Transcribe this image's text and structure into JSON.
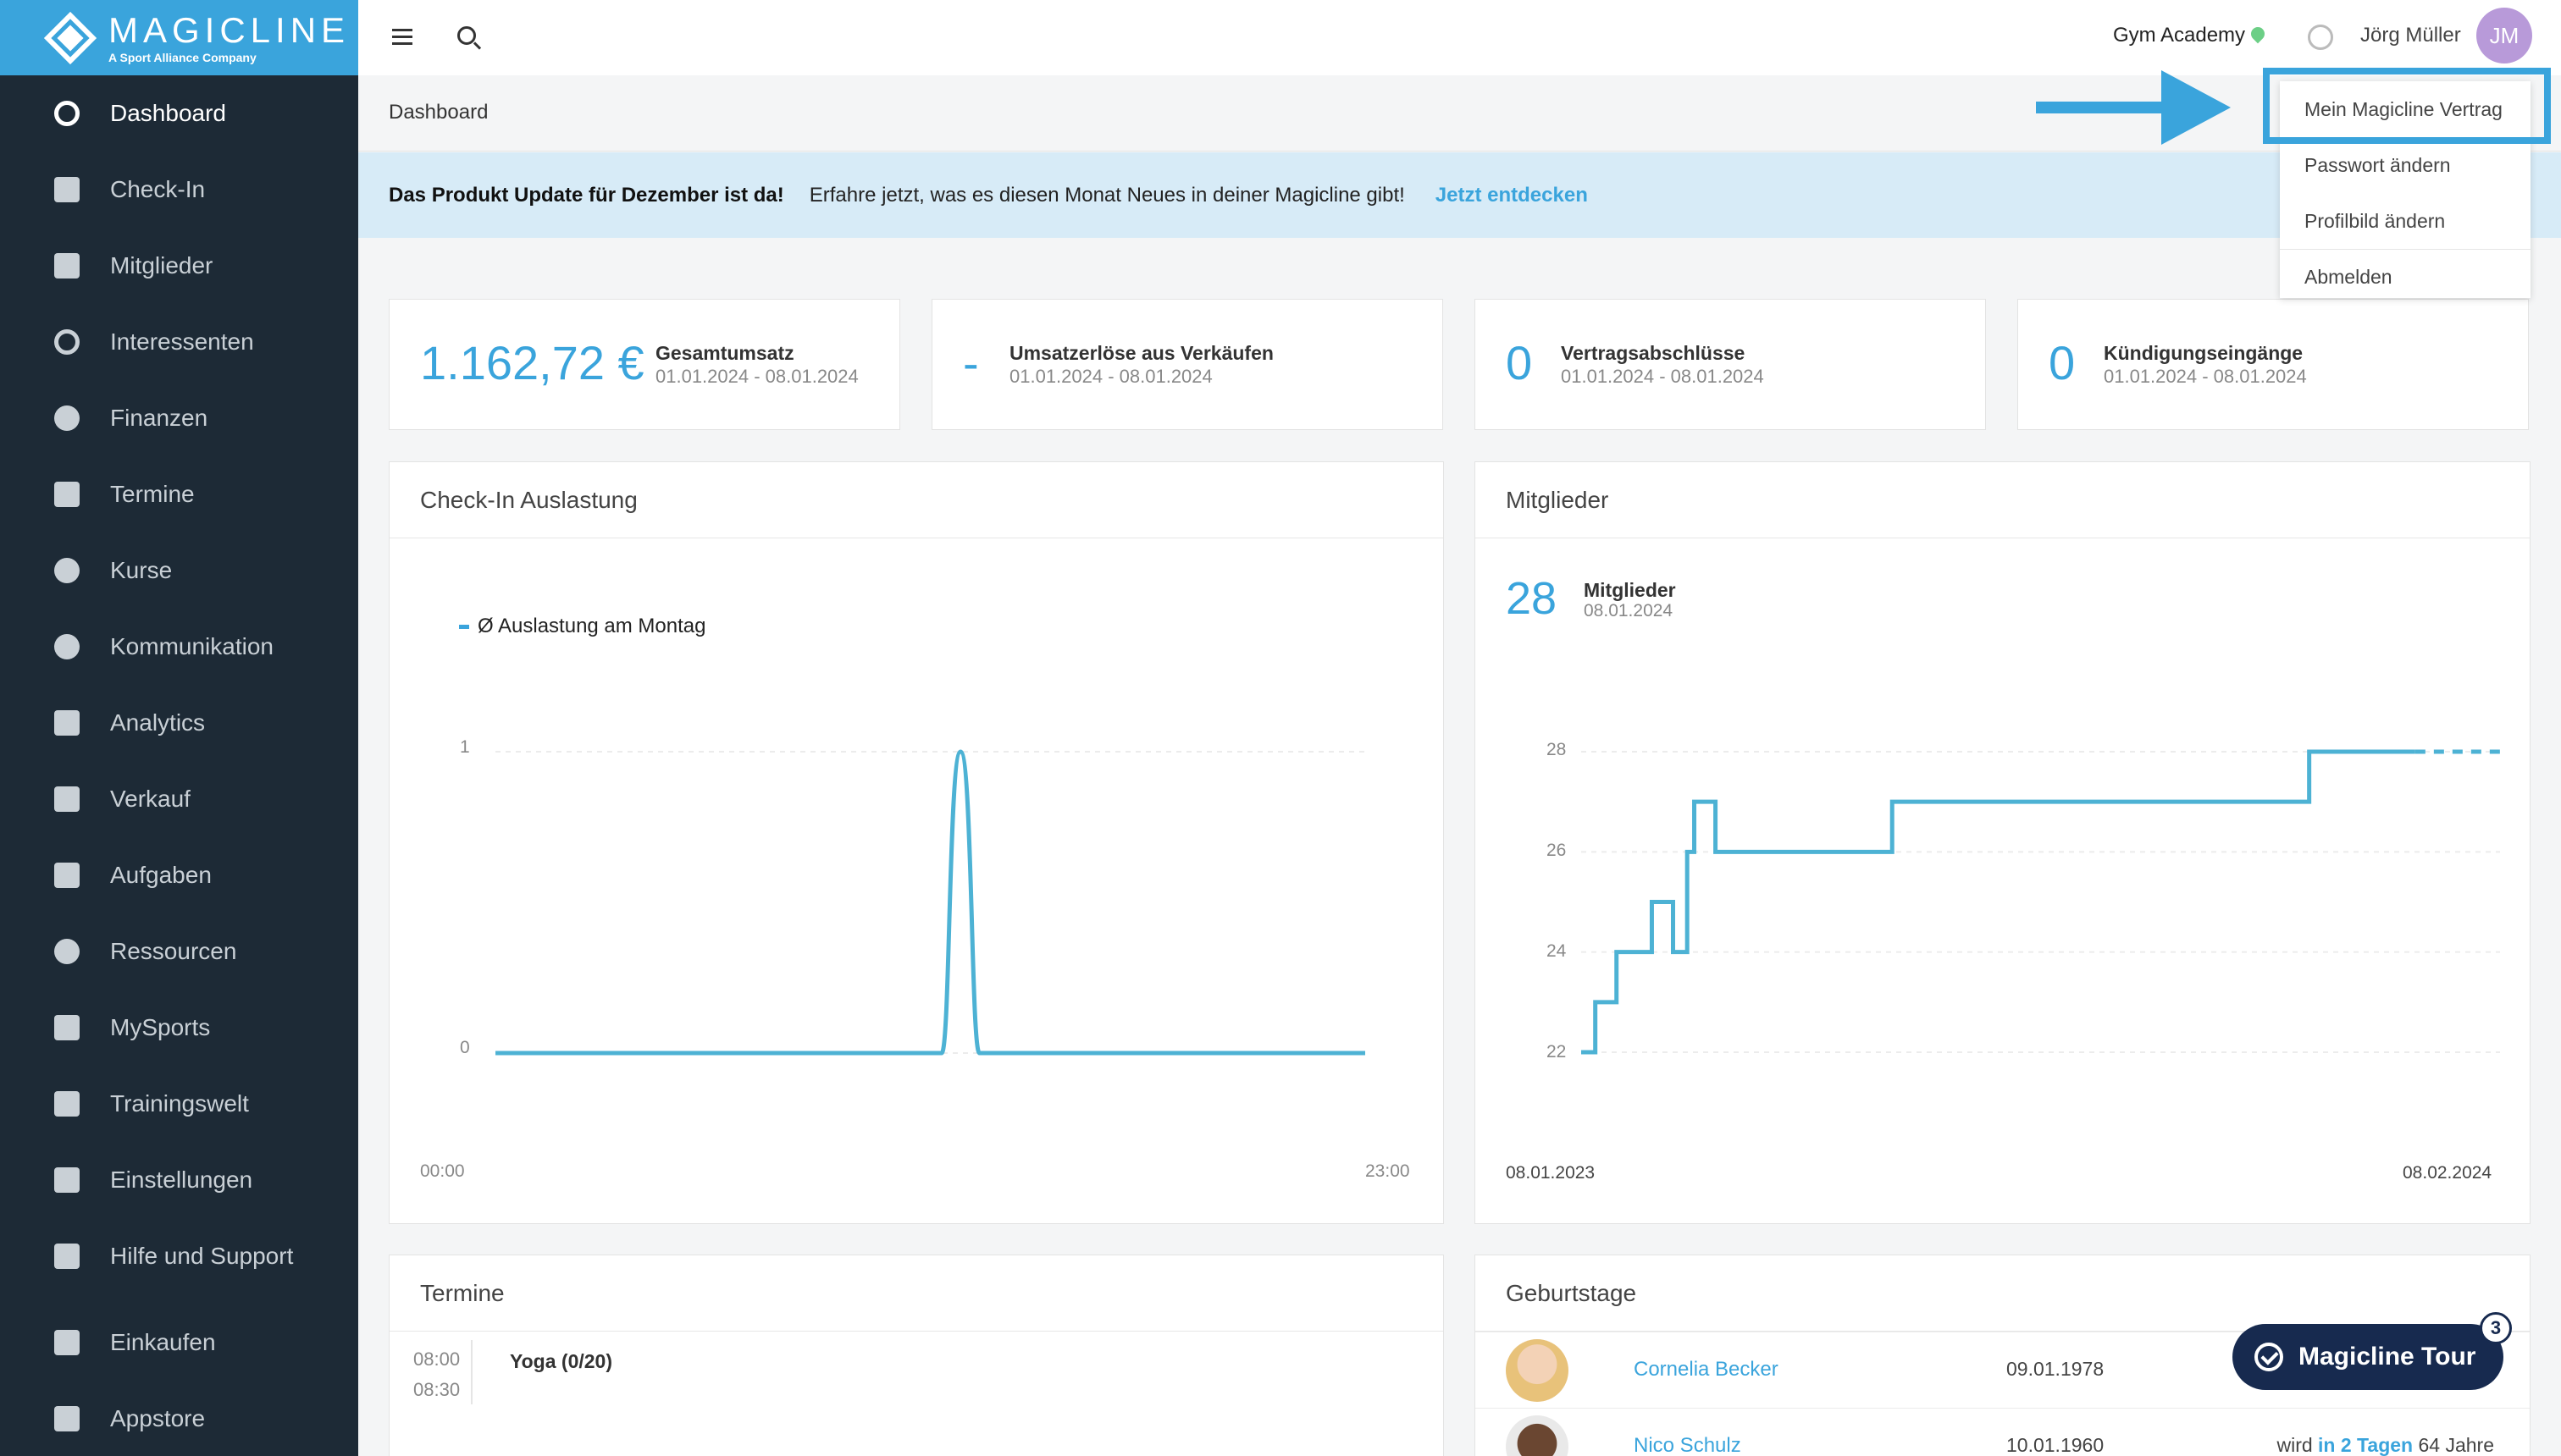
{
  "sidebar": {
    "logo": {
      "brand": "MAGICLINE",
      "tagline": "A Sport Alliance Company"
    },
    "items": [
      {
        "label": "Dashboard",
        "icon": "gauge-icon"
      },
      {
        "label": "Check-In",
        "icon": "check-in-icon"
      },
      {
        "label": "Mitglieder",
        "icon": "member-card-icon"
      },
      {
        "label": "Interessenten",
        "icon": "target-icon"
      },
      {
        "label": "Finanzen",
        "icon": "euro-icon"
      },
      {
        "label": "Termine",
        "icon": "calendar-icon"
      },
      {
        "label": "Kurse",
        "icon": "stopwatch-icon"
      },
      {
        "label": "Kommunikation",
        "icon": "chat-icon"
      },
      {
        "label": "Analytics",
        "icon": "chart-icon"
      },
      {
        "label": "Verkauf",
        "icon": "cart-icon"
      },
      {
        "label": "Aufgaben",
        "icon": "checkbox-icon"
      },
      {
        "label": "Ressourcen",
        "icon": "people-icon"
      },
      {
        "label": "MySports",
        "icon": "dots-grid-icon"
      },
      {
        "label": "Trainingswelt",
        "icon": "dumbbell-icon"
      },
      {
        "label": "Einstellungen",
        "icon": "sliders-icon"
      },
      {
        "label": "Hilfe und Support",
        "icon": "help-icon"
      },
      {
        "label": "Einkaufen",
        "icon": "shop-icon"
      },
      {
        "label": "Appstore",
        "icon": "apps-icon"
      }
    ]
  },
  "header": {
    "studio": "Gym Academy",
    "user_name": "Jörg Müller",
    "avatar_initials": "JM"
  },
  "breadcrumb": "Dashboard",
  "banner": {
    "bold": "Das Produkt Update für Dezember ist da!",
    "message": "Erfahre jetzt, was es diesen Monat Neues in deiner Magicline gibt!",
    "link": "Jetzt entdecken"
  },
  "user_menu": {
    "items": [
      "Mein Magicline Vertrag",
      "Passwort ändern",
      "Profilbild ändern",
      "Abmelden"
    ]
  },
  "kpis": [
    {
      "value": "1.162,72 €",
      "label": "Gesamtumsatz",
      "range": "01.01.2024 - 08.01.2024"
    },
    {
      "value": "-",
      "label": "Umsatzerlöse aus Verkäufen",
      "range": "01.01.2024 - 08.01.2024"
    },
    {
      "value": "0",
      "label": "Vertragsabschlüsse",
      "range": "01.01.2024 - 08.01.2024"
    },
    {
      "value": "0",
      "label": "Kündigungseingänge",
      "range": "01.01.2024 - 08.01.2024"
    }
  ],
  "checkin_panel": {
    "title": "Check-In Auslastung"
  },
  "members_panel": {
    "title": "Mitglieder",
    "count": "28",
    "label": "Mitglieder",
    "date": "08.01.2024"
  },
  "termine_panel": {
    "title": "Termine",
    "entries": [
      {
        "start": "08:00",
        "end": "08:30",
        "title": "Yoga (0/20)"
      }
    ]
  },
  "birthdays_panel": {
    "title": "Geburtstage",
    "entries": [
      {
        "name": "Cornelia Becker",
        "dob": "09.01.1978",
        "prefix": "",
        "highlight": "",
        "suffix": ""
      },
      {
        "name": "Nico Schulz",
        "dob": "10.01.1960",
        "prefix": "wird ",
        "highlight": "in 2 Tagen",
        "suffix": " 64 Jahre"
      }
    ]
  },
  "tour_button": {
    "label": "Magicline Tour",
    "count": "3"
  },
  "colors": {
    "accent": "#3aa4dc",
    "sidebar": "#1d2a36",
    "tour": "#172a4f"
  },
  "chart_data": [
    {
      "type": "line",
      "title": "Check-In Auslastung",
      "series": [
        {
          "name": "Ø Auslastung am Montag",
          "x": [
            0,
            1,
            2,
            3,
            4,
            5,
            6,
            7,
            8,
            9,
            10,
            11,
            11.8,
            12.3,
            12.8,
            13.5,
            14,
            15,
            16,
            17,
            18,
            19,
            20,
            21,
            22,
            23
          ],
          "values": [
            0,
            0,
            0,
            0,
            0,
            0,
            0,
            0,
            0,
            0,
            0,
            0,
            0,
            1,
            0,
            0,
            0,
            0,
            0,
            0,
            0,
            0,
            0,
            0,
            0,
            0
          ]
        }
      ],
      "xlabels": [
        "00:00",
        "23:00"
      ],
      "ylim": [
        0,
        1
      ],
      "yticks": [
        "1",
        "0"
      ]
    },
    {
      "type": "line",
      "title": "Mitglieder",
      "x_start_label": "08.01.2023",
      "x_end_label": "08.02.2024",
      "ylim": [
        22,
        28
      ],
      "yticks": [
        "28",
        "26",
        "24",
        "22"
      ],
      "series": [
        {
          "name": "Mitglieder",
          "points_month": [
            0,
            0.2,
            0.2,
            0.5,
            0.5,
            1.0,
            1.0,
            1.3,
            1.3,
            1.5,
            1.5,
            1.6,
            1.6,
            1.9,
            1.9,
            2.2,
            2.2,
            4.4,
            4.4,
            10.3,
            10.3,
            11.8
          ],
          "points_value": [
            22,
            22,
            23,
            23,
            24,
            24,
            25,
            25,
            24,
            24,
            26,
            26,
            27,
            27,
            26,
            26,
            26,
            26,
            27,
            27,
            28,
            28
          ],
          "forecast_end_month": 13.0
        }
      ]
    }
  ]
}
